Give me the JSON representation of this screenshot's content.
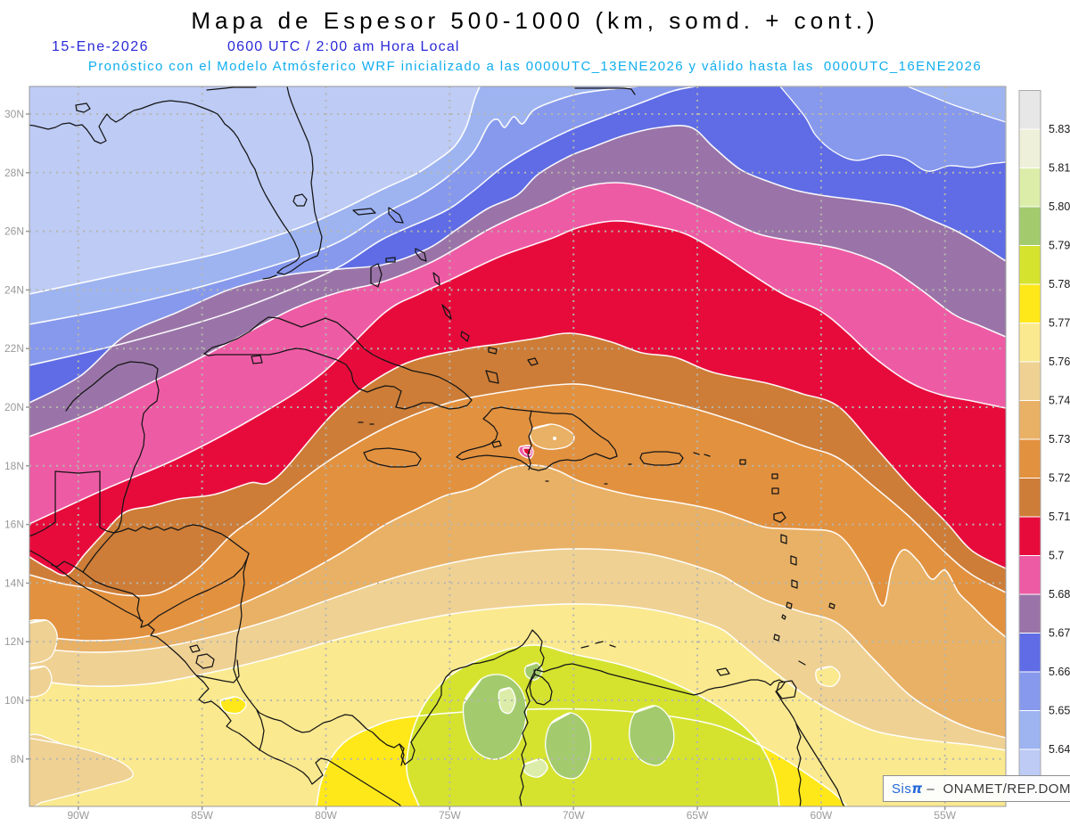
{
  "header": {
    "title": "Mapa de Espesor 500-1000 (km, somd. + cont.)",
    "date": "15-Ene-2026",
    "time": "0600 UTC / 2:00 am Hora Local",
    "forecast": "Pronóstico con el Modelo Atmósferico WRF inicializado a las 0000UTC_13ENE2026 y válido hasta las  0000UTC_16ENE2026"
  },
  "colors": {
    "title": "#000000",
    "date_line": "#2a2ad8",
    "forecast_line": "#11aeee",
    "axis_label": "#9a9a9a",
    "grid": "#b6b6ae",
    "coastline": "#151515",
    "contour_line": "#ffffff",
    "colorbar_label": "#1a1a1a",
    "frame": "#9a9a9a",
    "watermark_blue": "#2468d9",
    "watermark_dark": "#3a3a3a"
  },
  "axes": {
    "lat_labels": [
      "30N",
      "28N",
      "26N",
      "24N",
      "22N",
      "20N",
      "18N",
      "16N",
      "14N",
      "12N",
      "10N",
      "8N"
    ],
    "lon_labels": [
      "90W",
      "85W",
      "80W",
      "75W",
      "70W",
      "65W",
      "60W",
      "55W"
    ]
  },
  "colorbar": {
    "labels": [
      "5.831",
      "5.819",
      "5.807",
      "5.795",
      "5.783",
      "5.772",
      "5.76",
      "5.748",
      "5.736",
      "5.724",
      "5.712",
      "5.7",
      "5.688",
      "5.676",
      "5.664",
      "5.652",
      "5.64"
    ],
    "contour_levels": [
      5.831,
      5.819,
      5.807,
      5.795,
      5.783,
      5.772,
      5.76,
      5.748,
      5.736,
      5.724,
      5.712,
      5.7,
      5.688,
      5.676,
      5.664,
      5.652,
      5.64
    ],
    "segment_colors_top_to_bottom": [
      "#e7e7e7",
      "#eff0da",
      "#dcedaa",
      "#a3cb6e",
      "#d5e32f",
      "#ffe81a",
      "#fae98f",
      "#efd193",
      "#e9b165",
      "#e2913f",
      "#cd7d37",
      "#e70b3c",
      "#ee5ba5",
      "#9a74a8",
      "#5f6ce5",
      "#8799ec",
      "#9eb4f1",
      "#bdcbf5"
    ]
  },
  "watermark": {
    "app": "Sis",
    "pi": "π",
    "rest": " –  ONAMET/REP.DOM."
  }
}
